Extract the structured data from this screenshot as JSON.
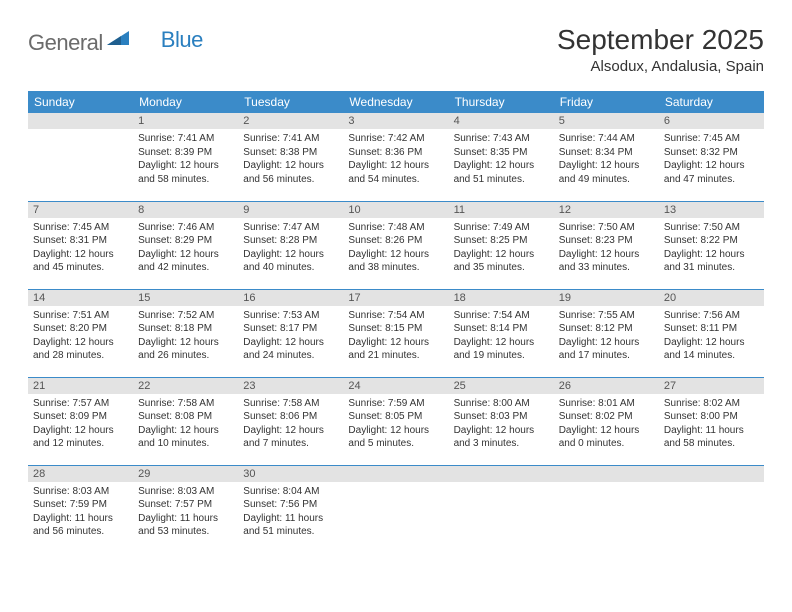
{
  "brand": {
    "part1": "General",
    "part2": "Blue"
  },
  "title": "September 2025",
  "location": "Alsodux, Andalusia, Spain",
  "colors": {
    "header_bg": "#3b8bc9",
    "header_text": "#ffffff",
    "daynum_bg": "#e3e3e3",
    "row_divider": "#3b8bc9",
    "text": "#333333",
    "logo_gray": "#6b6b6b",
    "logo_blue": "#2a7fbf"
  },
  "day_headers": [
    "Sunday",
    "Monday",
    "Tuesday",
    "Wednesday",
    "Thursday",
    "Friday",
    "Saturday"
  ],
  "weeks": [
    [
      {
        "num": "",
        "lines": []
      },
      {
        "num": "1",
        "lines": [
          "Sunrise: 7:41 AM",
          "Sunset: 8:39 PM",
          "Daylight: 12 hours and 58 minutes."
        ]
      },
      {
        "num": "2",
        "lines": [
          "Sunrise: 7:41 AM",
          "Sunset: 8:38 PM",
          "Daylight: 12 hours and 56 minutes."
        ]
      },
      {
        "num": "3",
        "lines": [
          "Sunrise: 7:42 AM",
          "Sunset: 8:36 PM",
          "Daylight: 12 hours and 54 minutes."
        ]
      },
      {
        "num": "4",
        "lines": [
          "Sunrise: 7:43 AM",
          "Sunset: 8:35 PM",
          "Daylight: 12 hours and 51 minutes."
        ]
      },
      {
        "num": "5",
        "lines": [
          "Sunrise: 7:44 AM",
          "Sunset: 8:34 PM",
          "Daylight: 12 hours and 49 minutes."
        ]
      },
      {
        "num": "6",
        "lines": [
          "Sunrise: 7:45 AM",
          "Sunset: 8:32 PM",
          "Daylight: 12 hours and 47 minutes."
        ]
      }
    ],
    [
      {
        "num": "7",
        "lines": [
          "Sunrise: 7:45 AM",
          "Sunset: 8:31 PM",
          "Daylight: 12 hours and 45 minutes."
        ]
      },
      {
        "num": "8",
        "lines": [
          "Sunrise: 7:46 AM",
          "Sunset: 8:29 PM",
          "Daylight: 12 hours and 42 minutes."
        ]
      },
      {
        "num": "9",
        "lines": [
          "Sunrise: 7:47 AM",
          "Sunset: 8:28 PM",
          "Daylight: 12 hours and 40 minutes."
        ]
      },
      {
        "num": "10",
        "lines": [
          "Sunrise: 7:48 AM",
          "Sunset: 8:26 PM",
          "Daylight: 12 hours and 38 minutes."
        ]
      },
      {
        "num": "11",
        "lines": [
          "Sunrise: 7:49 AM",
          "Sunset: 8:25 PM",
          "Daylight: 12 hours and 35 minutes."
        ]
      },
      {
        "num": "12",
        "lines": [
          "Sunrise: 7:50 AM",
          "Sunset: 8:23 PM",
          "Daylight: 12 hours and 33 minutes."
        ]
      },
      {
        "num": "13",
        "lines": [
          "Sunrise: 7:50 AM",
          "Sunset: 8:22 PM",
          "Daylight: 12 hours and 31 minutes."
        ]
      }
    ],
    [
      {
        "num": "14",
        "lines": [
          "Sunrise: 7:51 AM",
          "Sunset: 8:20 PM",
          "Daylight: 12 hours and 28 minutes."
        ]
      },
      {
        "num": "15",
        "lines": [
          "Sunrise: 7:52 AM",
          "Sunset: 8:18 PM",
          "Daylight: 12 hours and 26 minutes."
        ]
      },
      {
        "num": "16",
        "lines": [
          "Sunrise: 7:53 AM",
          "Sunset: 8:17 PM",
          "Daylight: 12 hours and 24 minutes."
        ]
      },
      {
        "num": "17",
        "lines": [
          "Sunrise: 7:54 AM",
          "Sunset: 8:15 PM",
          "Daylight: 12 hours and 21 minutes."
        ]
      },
      {
        "num": "18",
        "lines": [
          "Sunrise: 7:54 AM",
          "Sunset: 8:14 PM",
          "Daylight: 12 hours and 19 minutes."
        ]
      },
      {
        "num": "19",
        "lines": [
          "Sunrise: 7:55 AM",
          "Sunset: 8:12 PM",
          "Daylight: 12 hours and 17 minutes."
        ]
      },
      {
        "num": "20",
        "lines": [
          "Sunrise: 7:56 AM",
          "Sunset: 8:11 PM",
          "Daylight: 12 hours and 14 minutes."
        ]
      }
    ],
    [
      {
        "num": "21",
        "lines": [
          "Sunrise: 7:57 AM",
          "Sunset: 8:09 PM",
          "Daylight: 12 hours and 12 minutes."
        ]
      },
      {
        "num": "22",
        "lines": [
          "Sunrise: 7:58 AM",
          "Sunset: 8:08 PM",
          "Daylight: 12 hours and 10 minutes."
        ]
      },
      {
        "num": "23",
        "lines": [
          "Sunrise: 7:58 AM",
          "Sunset: 8:06 PM",
          "Daylight: 12 hours and 7 minutes."
        ]
      },
      {
        "num": "24",
        "lines": [
          "Sunrise: 7:59 AM",
          "Sunset: 8:05 PM",
          "Daylight: 12 hours and 5 minutes."
        ]
      },
      {
        "num": "25",
        "lines": [
          "Sunrise: 8:00 AM",
          "Sunset: 8:03 PM",
          "Daylight: 12 hours and 3 minutes."
        ]
      },
      {
        "num": "26",
        "lines": [
          "Sunrise: 8:01 AM",
          "Sunset: 8:02 PM",
          "Daylight: 12 hours and 0 minutes."
        ]
      },
      {
        "num": "27",
        "lines": [
          "Sunrise: 8:02 AM",
          "Sunset: 8:00 PM",
          "Daylight: 11 hours and 58 minutes."
        ]
      }
    ],
    [
      {
        "num": "28",
        "lines": [
          "Sunrise: 8:03 AM",
          "Sunset: 7:59 PM",
          "Daylight: 11 hours and 56 minutes."
        ]
      },
      {
        "num": "29",
        "lines": [
          "Sunrise: 8:03 AM",
          "Sunset: 7:57 PM",
          "Daylight: 11 hours and 53 minutes."
        ]
      },
      {
        "num": "30",
        "lines": [
          "Sunrise: 8:04 AM",
          "Sunset: 7:56 PM",
          "Daylight: 11 hours and 51 minutes."
        ]
      },
      {
        "num": "",
        "lines": []
      },
      {
        "num": "",
        "lines": []
      },
      {
        "num": "",
        "lines": []
      },
      {
        "num": "",
        "lines": []
      }
    ]
  ]
}
